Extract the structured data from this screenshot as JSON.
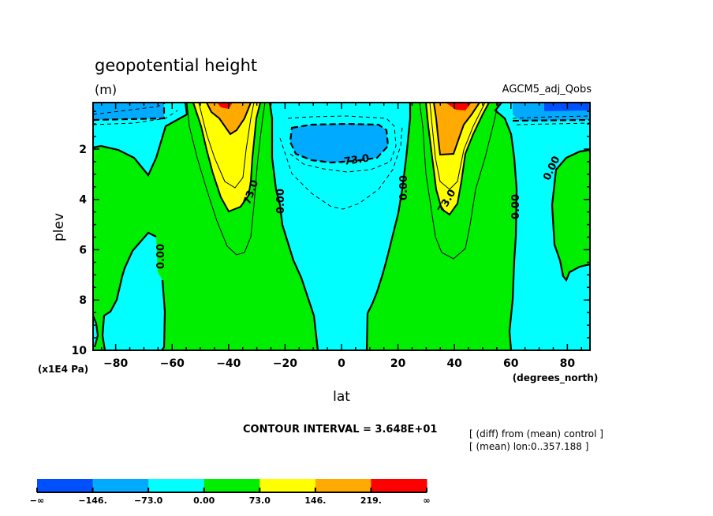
{
  "chart_data": {
    "type": "heatmap",
    "title": "geopotential height",
    "units": "(m)",
    "subtitle_right": "AGCM5_adj_Qobs",
    "xlabel": "lat",
    "xunits": "(degrees_north)",
    "ylabel": "plev",
    "yunits": "(x1E4 Pa)",
    "xlim": [
      -88,
      88
    ],
    "ylim": [
      10,
      0.15
    ],
    "x_ticks": [
      -80,
      -60,
      -40,
      -20,
      0,
      20,
      40,
      60,
      80
    ],
    "x_tick_labels": [
      "-80",
      "-60",
      "-40",
      "-20",
      "0",
      "20",
      "40",
      "60",
      "80"
    ],
    "y_ticks": [
      2,
      4,
      6,
      8,
      10
    ],
    "y_tick_labels": [
      "2",
      "4",
      "6",
      "8",
      "10"
    ],
    "contour_interval_text": "CONTOUR INTERVAL = 3.648E+01",
    "notes": [
      "[ (diff) from (mean) control ]",
      "[ (mean) lon:0..357.188 ]"
    ],
    "contour_labels": [
      "-73.0",
      "73.0",
      "0.00",
      "0.00",
      "73.0",
      "0.00",
      "0.00",
      "0.00"
    ],
    "colorbar": {
      "levels": [
        "-∞",
        "-146.",
        "-73.0",
        "0.00",
        "73.0",
        "146.",
        "219.",
        "∞"
      ],
      "colors": [
        "#0050ff",
        "#00aaff",
        "#00ffff",
        "#00ee00",
        "#ffff00",
        "#ffaa00",
        "#ff0000"
      ]
    },
    "regions": [
      {
        "name": "sh-high-lat-negative",
        "level_range": "-73.0 to 0.00",
        "color": "#00ffff"
      },
      {
        "name": "sh-polar-top-negative",
        "level_range": "-146. to -73.0",
        "color": "#00aaff"
      },
      {
        "name": "sh-midlat-jet-positive",
        "level_range": "73.0 to 219.",
        "color": "#ffff00"
      },
      {
        "name": "sh-jet-core",
        "level_range": "219. to ∞",
        "color": "#ff0000"
      },
      {
        "name": "tropical-negative",
        "level_range": "-73.0 to 0.00",
        "color": "#00ffff"
      },
      {
        "name": "tropical-upper-min",
        "level_range": "-146. to -73.0",
        "color": "#00aaff"
      },
      {
        "name": "nh-midlat-jet-positive",
        "level_range": "73.0 to 219.",
        "color": "#ffff00"
      },
      {
        "name": "nh-jet-core",
        "level_range": "219. to ∞",
        "color": "#ff0000"
      },
      {
        "name": "nh-high-lat-negative",
        "level_range": "-73.0 to 0.00",
        "color": "#00ffff"
      },
      {
        "name": "nh-polar-top-negative",
        "level_range": "-146. to -73.0",
        "color": "#00aaff"
      }
    ]
  }
}
